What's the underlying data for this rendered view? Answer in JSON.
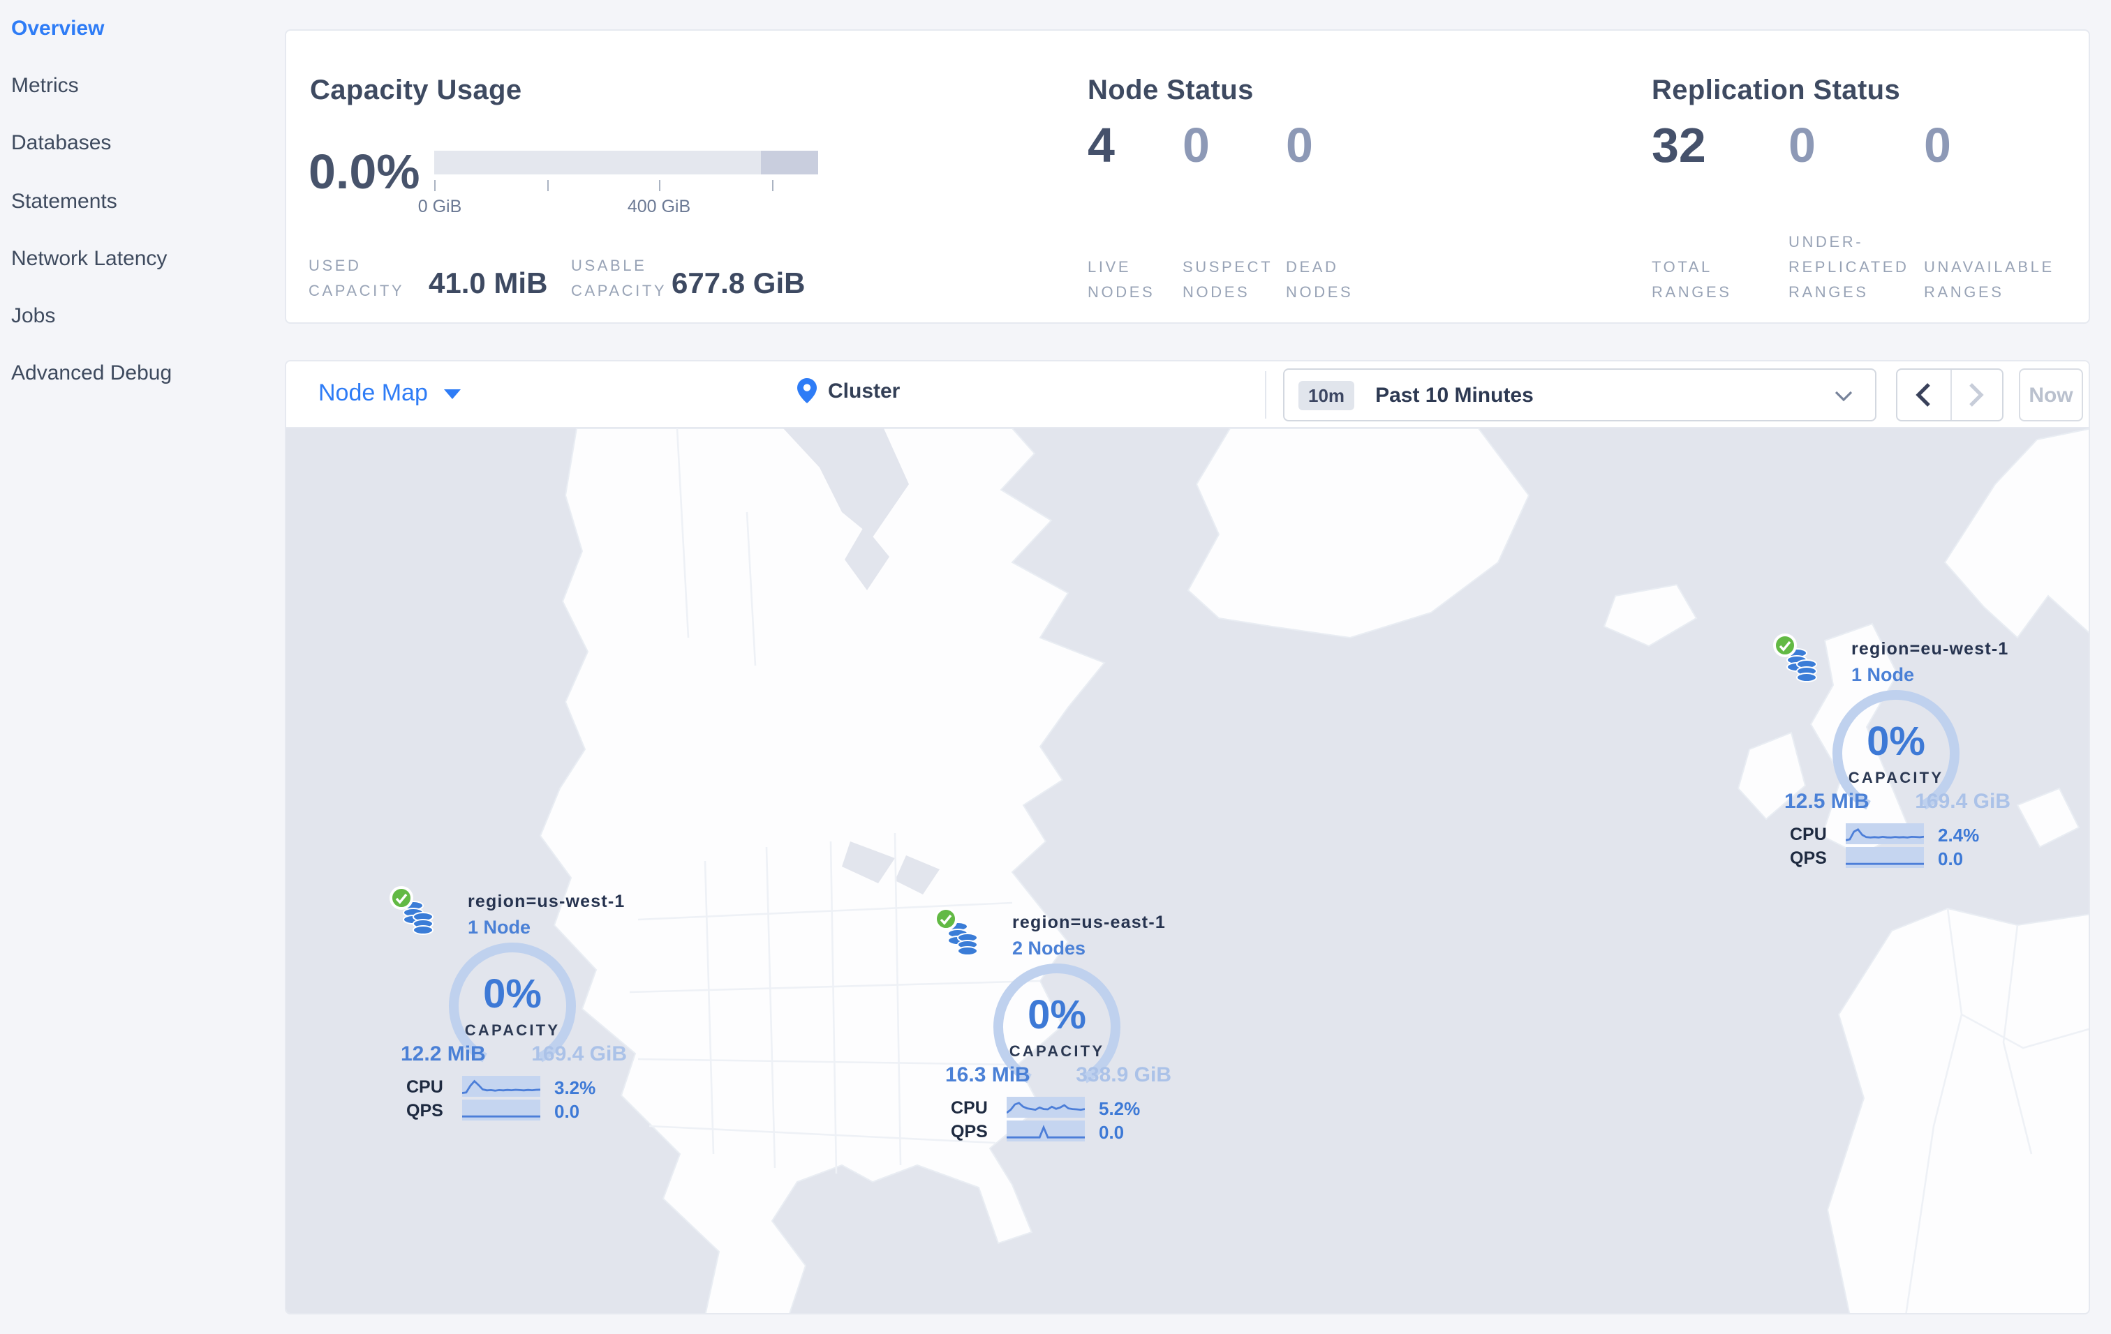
{
  "colors": {
    "accent_blue": "#2e7cf6",
    "marker_blue": "#4a80d6",
    "gauge_arc_blue": "#bfd1ee",
    "muted_value_blue": "#abc2e8",
    "status_green": "#62b944",
    "ocean_gray": "#e2e5ed",
    "land_white": "#fdfdfe",
    "big_number": "#45516b",
    "muted_number": "#8d99b6",
    "caps_label_gray": "#98a3b6",
    "bar_light": "#e4e7ee",
    "bar_dark": "#c9cede"
  },
  "sidebar": {
    "items": [
      {
        "label": "Overview",
        "active": true
      },
      {
        "label": "Metrics",
        "active": false
      },
      {
        "label": "Databases",
        "active": false
      },
      {
        "label": "Statements",
        "active": false
      },
      {
        "label": "Network Latency",
        "active": false
      },
      {
        "label": "Jobs",
        "active": false
      },
      {
        "label": "Advanced Debug",
        "active": false
      }
    ]
  },
  "capacity": {
    "title": "Capacity Usage",
    "percent": "0.0%",
    "tick_label_0": "0 GiB",
    "tick_label_400": "400 GiB",
    "used": {
      "line1": "USED",
      "line2": "CAPACITY",
      "value": "41.0 MiB"
    },
    "usable": {
      "line1": "USABLE",
      "line2": "CAPACITY",
      "value": "677.8 GiB"
    }
  },
  "node_status": {
    "title": "Node Status",
    "stats": [
      {
        "value": "4",
        "line1": "LIVE",
        "line2": "NODES"
      },
      {
        "value": "0",
        "line1": "SUSPECT",
        "line2": "NODES"
      },
      {
        "value": "0",
        "line1": "DEAD",
        "line2": "NODES"
      }
    ]
  },
  "replication_status": {
    "title": "Replication Status",
    "stats": [
      {
        "value": "32",
        "line1": "TOTAL",
        "line2": "RANGES"
      },
      {
        "value": "0",
        "line1": "UNDER-",
        "line2": "REPLICATED",
        "line3": "RANGES"
      },
      {
        "value": "0",
        "line1": "UNAVAILABLE",
        "line2": "RANGES"
      }
    ]
  },
  "toolbar": {
    "view_label": "Node Map",
    "breadcrumb": "Cluster",
    "time_badge": "10m",
    "time_label": "Past 10 Minutes",
    "now_label": "Now"
  },
  "map": {
    "regions": [
      {
        "name": "region=us-west-1",
        "nodes_label": "1 Node",
        "capacity_percent": "0%",
        "capacity_label": "CAPACITY",
        "used": "12.2 MiB",
        "usable": "169.4 GiB",
        "cpu_label": "CPU",
        "cpu_value": "3.2%",
        "qps_label": "QPS",
        "qps_value": "0.0",
        "cpu_spark": [
          0.08,
          0.12,
          0.55,
          0.85,
          0.6,
          0.32,
          0.25,
          0.27,
          0.24,
          0.27,
          0.25,
          0.28,
          0.26,
          0.29,
          0.27,
          0.25,
          0.28,
          0.26,
          0.29,
          0.3
        ],
        "qps_spark": [
          0.1,
          0.1,
          0.1,
          0.1,
          0.1,
          0.1,
          0.1,
          0.1,
          0.1,
          0.1,
          0.1,
          0.1,
          0.1,
          0.1,
          0.1,
          0.1,
          0.1,
          0.1,
          0.1,
          0.1
        ]
      },
      {
        "name": "region=us-east-1",
        "nodes_label": "2 Nodes",
        "capacity_percent": "0%",
        "capacity_label": "CAPACITY",
        "used": "16.3 MiB",
        "usable": "338.9 GiB",
        "cpu_label": "CPU",
        "cpu_value": "5.2%",
        "qps_label": "QPS",
        "qps_value": "0.0",
        "cpu_spark": [
          0.15,
          0.35,
          0.7,
          0.8,
          0.55,
          0.45,
          0.4,
          0.35,
          0.5,
          0.4,
          0.38,
          0.55,
          0.42,
          0.5,
          0.65,
          0.45,
          0.4,
          0.38,
          0.35,
          0.4
        ],
        "qps_spark": [
          0.1,
          0.1,
          0.1,
          0.1,
          0.1,
          0.1,
          0.1,
          0.1,
          0.1,
          0.75,
          0.1,
          0.1,
          0.1,
          0.1,
          0.1,
          0.1,
          0.1,
          0.1,
          0.1,
          0.1
        ]
      },
      {
        "name": "region=eu-west-1",
        "nodes_label": "1 Node",
        "capacity_percent": "0%",
        "capacity_label": "CAPACITY",
        "used": "12.5 MiB",
        "usable": "169.4 GiB",
        "cpu_label": "CPU",
        "cpu_value": "2.4%",
        "qps_label": "QPS",
        "qps_value": "0.0",
        "cpu_spark": [
          0.1,
          0.15,
          0.65,
          0.8,
          0.45,
          0.3,
          0.27,
          0.3,
          0.27,
          0.32,
          0.28,
          0.27,
          0.31,
          0.28,
          0.3,
          0.27,
          0.32,
          0.31,
          0.29,
          0.33
        ],
        "qps_spark": [
          0.1,
          0.1,
          0.1,
          0.1,
          0.1,
          0.1,
          0.1,
          0.1,
          0.1,
          0.1,
          0.1,
          0.1,
          0.1,
          0.1,
          0.1,
          0.1,
          0.1,
          0.1,
          0.1,
          0.1
        ]
      }
    ]
  }
}
